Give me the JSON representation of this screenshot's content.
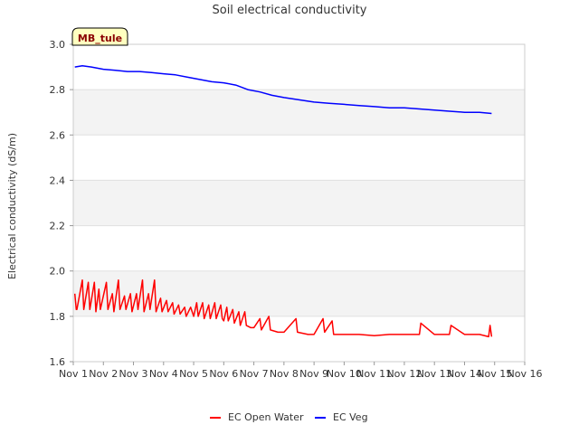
{
  "chart_data": {
    "type": "line",
    "title": "Soil electrical conductivity",
    "xlabel": "",
    "ylabel": "Electrical conductivity (dS/m)",
    "ylim": [
      1.6,
      3.0
    ],
    "xlim": [
      1,
      16
    ],
    "x_ticks": [
      {
        "value": 1,
        "label": "Nov 1"
      },
      {
        "value": 2,
        "label": "Nov 2"
      },
      {
        "value": 3,
        "label": "Nov 3"
      },
      {
        "value": 4,
        "label": "Nov 4"
      },
      {
        "value": 5,
        "label": "Nov 5"
      },
      {
        "value": 6,
        "label": "Nov 6"
      },
      {
        "value": 7,
        "label": "Nov 7"
      },
      {
        "value": 8,
        "label": "Nov 8"
      },
      {
        "value": 9,
        "label": "Nov 9"
      },
      {
        "value": 10,
        "label": "Nov 10"
      },
      {
        "value": 11,
        "label": "Nov 11"
      },
      {
        "value": 12,
        "label": "Nov 12"
      },
      {
        "value": 13,
        "label": "Nov 13"
      },
      {
        "value": 14,
        "label": "Nov 14"
      },
      {
        "value": 15,
        "label": "Nov 15"
      },
      {
        "value": 16,
        "label": "Nov 16"
      }
    ],
    "y_ticks": [
      {
        "value": 1.6,
        "label": "1.6"
      },
      {
        "value": 1.8,
        "label": "1.8"
      },
      {
        "value": 2.0,
        "label": "2.0"
      },
      {
        "value": 2.2,
        "label": "2.2"
      },
      {
        "value": 2.4,
        "label": "2.4"
      },
      {
        "value": 2.6,
        "label": "2.6"
      },
      {
        "value": 2.8,
        "label": "2.8"
      },
      {
        "value": 3.0,
        "label": "3.0"
      }
    ],
    "station_tag": "MB_tule",
    "legend_position": "bottom-center",
    "series": [
      {
        "name": "EC Open Water",
        "color": "#ff0000",
        "x": [
          1.05,
          1.1,
          1.12,
          1.3,
          1.35,
          1.5,
          1.55,
          1.7,
          1.75,
          1.85,
          1.9,
          2.1,
          2.15,
          2.3,
          2.35,
          2.5,
          2.55,
          2.7,
          2.75,
          2.9,
          2.95,
          3.1,
          3.15,
          3.3,
          3.35,
          3.5,
          3.55,
          3.7,
          3.75,
          3.9,
          3.95,
          4.1,
          4.15,
          4.3,
          4.35,
          4.5,
          4.55,
          4.7,
          4.75,
          4.9,
          5.0,
          5.1,
          5.15,
          5.3,
          5.35,
          5.5,
          5.55,
          5.7,
          5.75,
          5.9,
          5.95,
          6.0,
          6.1,
          6.15,
          6.3,
          6.35,
          6.5,
          6.55,
          6.7,
          6.75,
          6.9,
          7.0,
          7.2,
          7.25,
          7.5,
          7.55,
          7.8,
          8.0,
          8.4,
          8.45,
          8.8,
          9.0,
          9.3,
          9.35,
          9.6,
          9.65,
          10.0,
          10.5,
          11.0,
          11.5,
          12.0,
          12.5,
          12.55,
          13.0,
          13.5,
          13.55,
          14.0,
          14.5,
          14.8,
          14.85,
          14.9
        ],
        "values": [
          1.9,
          1.83,
          1.83,
          1.96,
          1.83,
          1.95,
          1.83,
          1.95,
          1.82,
          1.92,
          1.83,
          1.95,
          1.83,
          1.9,
          1.82,
          1.96,
          1.83,
          1.89,
          1.83,
          1.9,
          1.82,
          1.9,
          1.83,
          1.96,
          1.82,
          1.9,
          1.83,
          1.96,
          1.82,
          1.88,
          1.82,
          1.87,
          1.82,
          1.86,
          1.81,
          1.85,
          1.81,
          1.84,
          1.8,
          1.84,
          1.8,
          1.86,
          1.8,
          1.86,
          1.79,
          1.85,
          1.79,
          1.86,
          1.79,
          1.85,
          1.79,
          1.78,
          1.84,
          1.78,
          1.83,
          1.77,
          1.82,
          1.76,
          1.82,
          1.76,
          1.75,
          1.75,
          1.79,
          1.74,
          1.8,
          1.74,
          1.73,
          1.73,
          1.79,
          1.73,
          1.72,
          1.72,
          1.79,
          1.73,
          1.78,
          1.72,
          1.72,
          1.72,
          1.715,
          1.72,
          1.72,
          1.72,
          1.77,
          1.72,
          1.72,
          1.76,
          1.72,
          1.72,
          1.71,
          1.76,
          1.71
        ]
      },
      {
        "name": "EC Veg",
        "color": "#0000ff",
        "x": [
          1.05,
          1.3,
          1.6,
          2.0,
          2.4,
          2.8,
          3.2,
          3.6,
          4.0,
          4.4,
          4.8,
          5.2,
          5.6,
          6.0,
          6.4,
          6.8,
          7.2,
          7.6,
          8.0,
          8.5,
          9.0,
          9.5,
          10.0,
          10.5,
          11.0,
          11.5,
          12.0,
          12.5,
          13.0,
          13.5,
          14.0,
          14.5,
          14.9
        ],
        "values": [
          2.9,
          2.905,
          2.9,
          2.89,
          2.885,
          2.88,
          2.88,
          2.875,
          2.87,
          2.865,
          2.855,
          2.845,
          2.835,
          2.83,
          2.82,
          2.8,
          2.79,
          2.775,
          2.765,
          2.755,
          2.745,
          2.74,
          2.735,
          2.73,
          2.725,
          2.72,
          2.72,
          2.715,
          2.71,
          2.705,
          2.7,
          2.7,
          2.695
        ]
      }
    ]
  }
}
